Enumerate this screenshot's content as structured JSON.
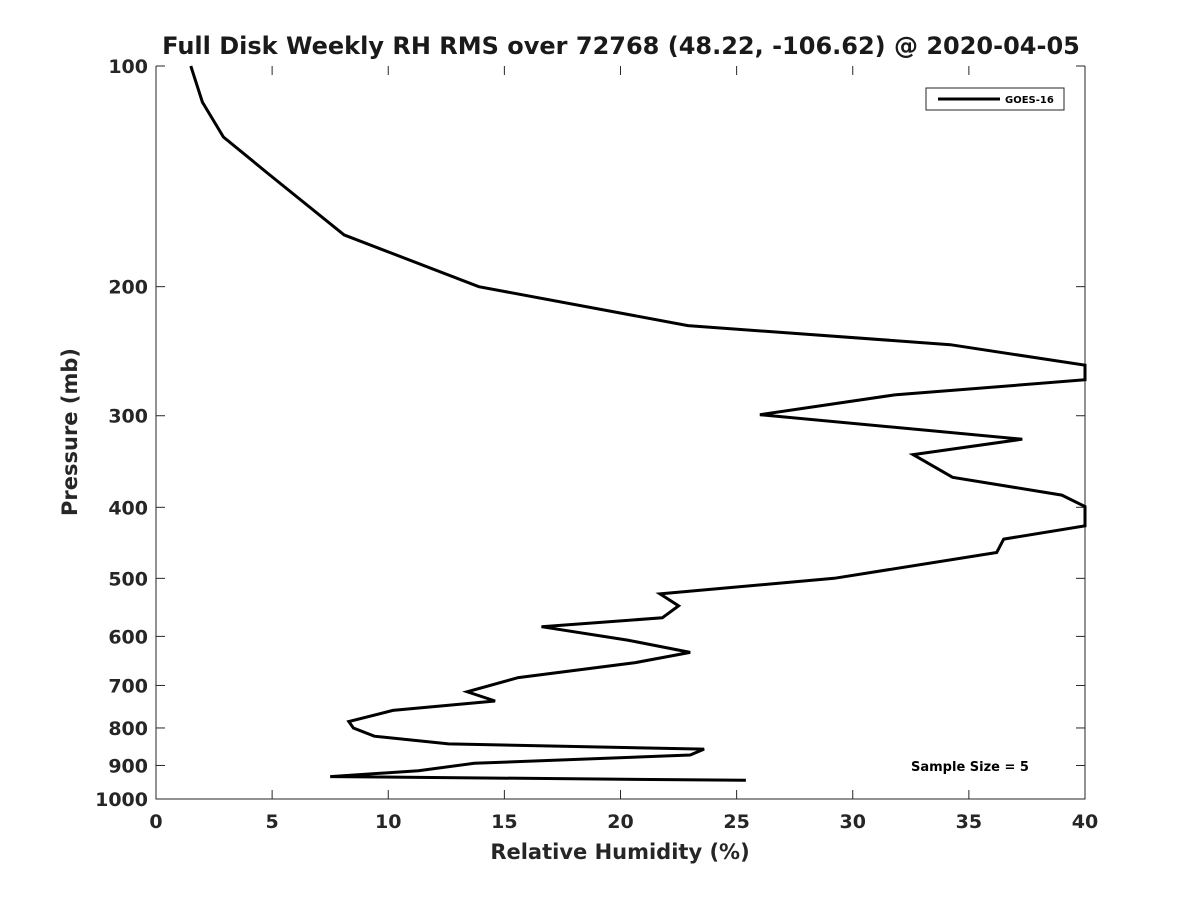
{
  "chart_data": {
    "type": "line",
    "title": "Full Disk Weekly RH RMS over 72768 (48.22, -106.62) @ 2020-04-05",
    "xlabel": "Relative Humidity (%)",
    "ylabel": "Pressure (mb)",
    "xlim": [
      0,
      40
    ],
    "ylim": [
      100,
      1000
    ],
    "y_scale": "log",
    "y_reversed": true,
    "x_ticks": [
      0,
      5,
      10,
      15,
      20,
      25,
      30,
      35,
      40
    ],
    "y_ticks": [
      100,
      200,
      300,
      400,
      500,
      600,
      700,
      800,
      900,
      1000
    ],
    "grid": false,
    "legend_position": "top-right",
    "annotation": "Sample Size = 5",
    "series": [
      {
        "name": "GOES-16",
        "color": "#000000",
        "x": [
          1.5,
          2.0,
          2.9,
          4.8,
          8.1,
          13.9,
          22.9,
          34.2,
          40.0,
          40.0,
          31.8,
          26.0,
          37.3,
          32.6,
          34.3,
          39.0,
          40.0,
          40.0,
          36.5,
          36.2,
          29.2,
          21.7,
          22.5,
          21.8,
          16.6,
          20.3,
          23.0,
          20.6,
          15.6,
          13.4,
          14.6,
          10.2,
          8.3,
          8.5,
          9.4,
          12.6,
          23.6,
          23.0,
          13.7,
          11.3,
          7.5,
          25.4
        ],
        "y": [
          100,
          112,
          125,
          140,
          170,
          200,
          226,
          240,
          256,
          268,
          281,
          299,
          323,
          339,
          364,
          385,
          399,
          424,
          442,
          461,
          500,
          525,
          545,
          566,
          582,
          607,
          631,
          652,
          683,
          714,
          735,
          757,
          784,
          800,
          821,
          841,
          855,
          871,
          894,
          915,
          932,
          943
        ]
      }
    ]
  }
}
